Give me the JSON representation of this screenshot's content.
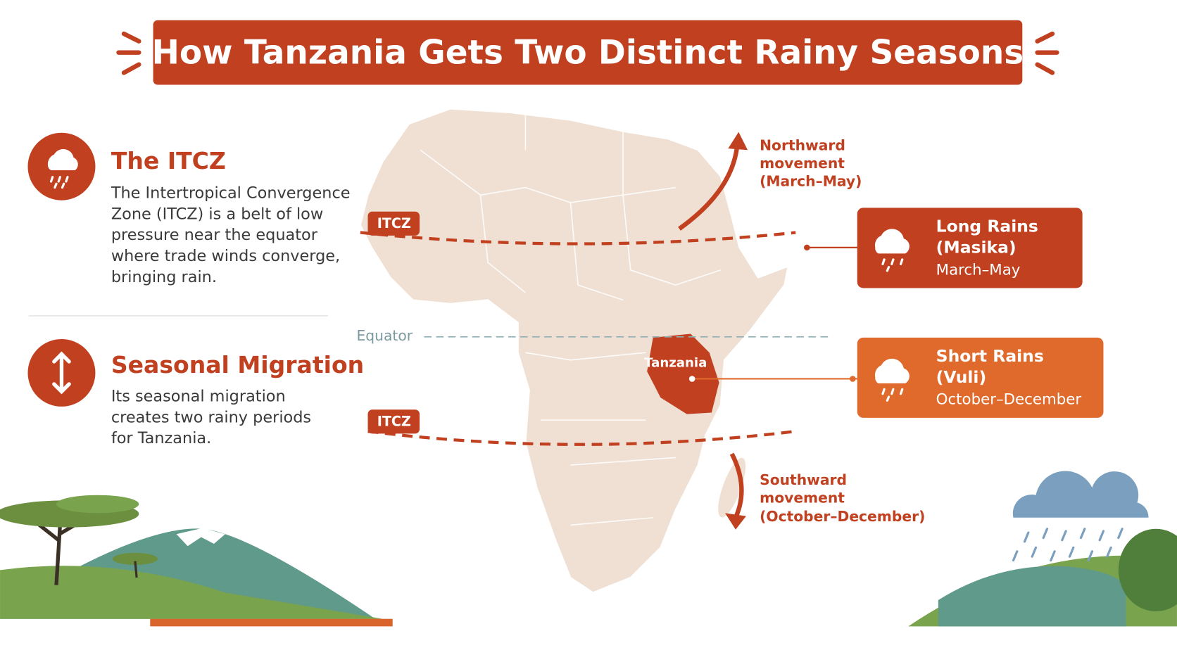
{
  "title": "How Tanzania Gets Two Distinct Rainy Seasons",
  "sections": [
    {
      "heading": "The ITCZ",
      "text": [
        "The Intertropical Convergence",
        "Zone (ITCZ) is a belt of low",
        "pressure near the equator",
        "where trade winds converge,",
        "bringing rain."
      ]
    },
    {
      "heading": "Seasonal Migration",
      "text": [
        "Its seasonal migration",
        "creates two rainy periods",
        "for Tanzania."
      ]
    }
  ],
  "map": {
    "itcz_labels": [
      "ITCZ",
      "ITCZ"
    ],
    "equator": "Equator",
    "country": "Tanzania",
    "northward": [
      "Northward",
      "movement",
      "(March–May)"
    ],
    "southward": [
      "Southward",
      "movement",
      "(October–December)"
    ]
  },
  "seasons": [
    {
      "name": [
        "Long Rains",
        "(Masika)"
      ],
      "period": "March–May"
    },
    {
      "name": [
        "Short Rains",
        "(Vuli)"
      ],
      "period": "October–December"
    }
  ]
}
